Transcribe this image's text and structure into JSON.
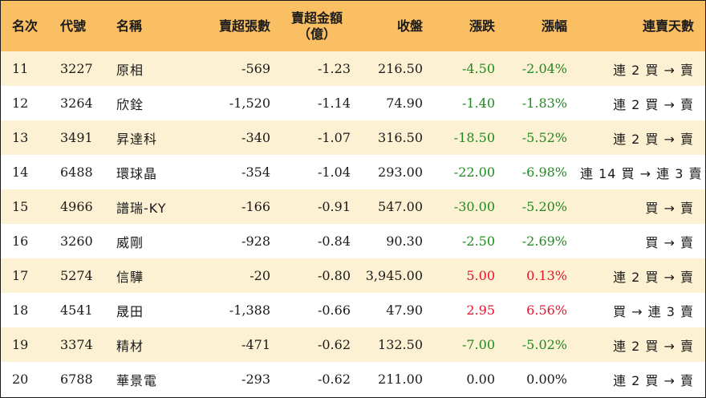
{
  "headers": {
    "rank": "名次",
    "code": "代號",
    "name": "名稱",
    "net_lots": "賣超張數",
    "net_amount_line1": "賣超金額",
    "net_amount_line2": "（億）",
    "close": "收盤",
    "change": "漲跌",
    "change_pct": "漲幅",
    "streak": "連賣天數"
  },
  "colors": {
    "header_bg": "#f9bf62",
    "row_alt_bg": "#fdf1d3",
    "up": "#e8122d",
    "down": "#1f8a1f"
  },
  "rows": [
    {
      "rank": "11",
      "code": "3227",
      "name": "原相",
      "lots": "-569",
      "amount": "-1.23",
      "close": "216.50",
      "change": "-4.50",
      "pct": "-2.04%",
      "dir": "down",
      "streak": "連 2 買 → 賣"
    },
    {
      "rank": "12",
      "code": "3264",
      "name": "欣銓",
      "lots": "-1,520",
      "amount": "-1.14",
      "close": "74.90",
      "change": "-1.40",
      "pct": "-1.83%",
      "dir": "down",
      "streak": "連 2 買 → 賣"
    },
    {
      "rank": "13",
      "code": "3491",
      "name": "昇達科",
      "lots": "-340",
      "amount": "-1.07",
      "close": "316.50",
      "change": "-18.50",
      "pct": "-5.52%",
      "dir": "down",
      "streak": "連 2 買 → 賣"
    },
    {
      "rank": "14",
      "code": "6488",
      "name": "環球晶",
      "lots": "-354",
      "amount": "-1.04",
      "close": "293.00",
      "change": "-22.00",
      "pct": "-6.98%",
      "dir": "down",
      "streak": "連 14 買 → 連 3 賣"
    },
    {
      "rank": "15",
      "code": "4966",
      "name": "譜瑞-KY",
      "lots": "-166",
      "amount": "-0.91",
      "close": "547.00",
      "change": "-30.00",
      "pct": "-5.20%",
      "dir": "down",
      "streak": "買 → 賣"
    },
    {
      "rank": "16",
      "code": "3260",
      "name": "威剛",
      "lots": "-928",
      "amount": "-0.84",
      "close": "90.30",
      "change": "-2.50",
      "pct": "-2.69%",
      "dir": "down",
      "streak": "買 → 賣"
    },
    {
      "rank": "17",
      "code": "5274",
      "name": "信驊",
      "lots": "-20",
      "amount": "-0.80",
      "close": "3,945.00",
      "change": "5.00",
      "pct": "0.13%",
      "dir": "up",
      "streak": "連 2 買 → 賣"
    },
    {
      "rank": "18",
      "code": "4541",
      "name": "晟田",
      "lots": "-1,388",
      "amount": "-0.66",
      "close": "47.90",
      "change": "2.95",
      "pct": "6.56%",
      "dir": "up",
      "streak": "買 → 連 3 賣"
    },
    {
      "rank": "19",
      "code": "3374",
      "name": "精材",
      "lots": "-471",
      "amount": "-0.62",
      "close": "132.50",
      "change": "-7.00",
      "pct": "-5.02%",
      "dir": "down",
      "streak": "連 2 買 → 賣"
    },
    {
      "rank": "20",
      "code": "6788",
      "name": "華景電",
      "lots": "-293",
      "amount": "-0.62",
      "close": "211.00",
      "change": "0.00",
      "pct": "0.00%",
      "dir": "flat",
      "streak": "連 2 買 → 賣"
    }
  ]
}
